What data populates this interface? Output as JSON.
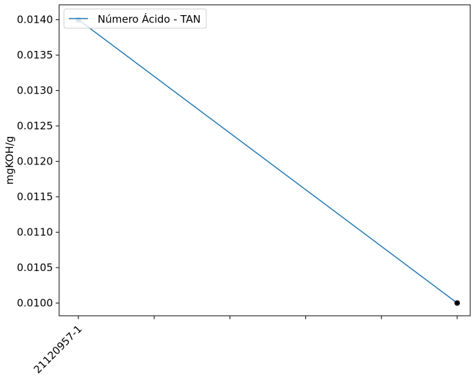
{
  "chart_data": {
    "type": "line",
    "title": "",
    "xlabel": "",
    "ylabel": "mgKOH/g",
    "grid": false,
    "legend_placement": "top-left",
    "x_tick_count": 6,
    "x_tick_labels": [
      "21120957-1",
      "",
      "",
      "",
      "",
      ""
    ],
    "yticks": [
      "0.0100",
      "0.0105",
      "0.0110",
      "0.0115",
      "0.0120",
      "0.0125",
      "0.0130",
      "0.0135",
      "0.0140"
    ],
    "ylim": [
      0.00982,
      0.01421
    ],
    "series": [
      {
        "name": "Número Ácido - TAN",
        "color": "#1f77b4",
        "points": [
          {
            "x_index": 0,
            "y": 0.014,
            "marker_color": "#1f77b4"
          },
          {
            "x_index": 5,
            "y": 0.01,
            "marker_color": "#000000"
          }
        ]
      }
    ]
  }
}
